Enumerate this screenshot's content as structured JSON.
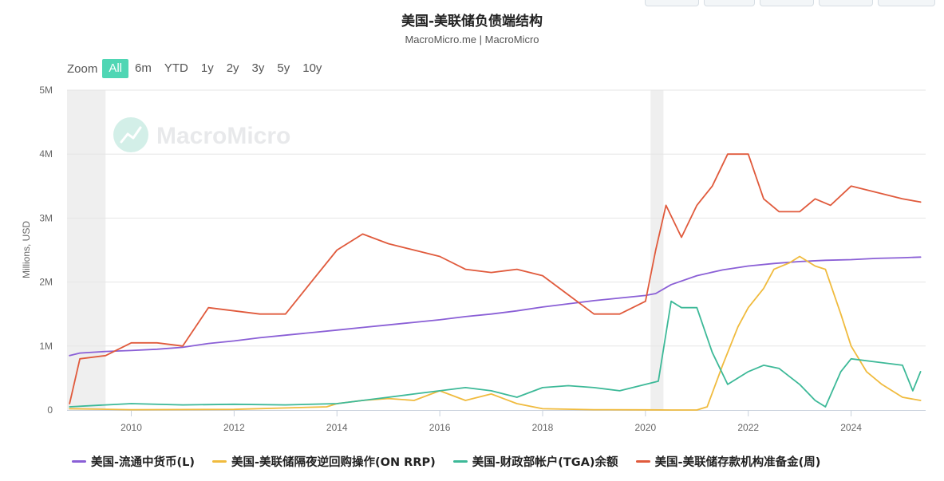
{
  "title": "美国-美联储负债端结构",
  "subtitle": "MacroMicro.me | MacroMicro",
  "watermark": "MacroMicro",
  "zoom": {
    "label": "Zoom",
    "buttons": [
      "All",
      "6m",
      "YTD",
      "1y",
      "2y",
      "3y",
      "5y",
      "10y"
    ],
    "active": "All"
  },
  "chart_data": {
    "type": "line",
    "ylabel": "Millions, USD",
    "xlabel": "",
    "xlim": [
      2008.75,
      2025.45
    ],
    "ylim": [
      0,
      5000000
    ],
    "x_ticks": [
      {
        "value": 2010,
        "label": "2010"
      },
      {
        "value": 2012,
        "label": "2012"
      },
      {
        "value": 2014,
        "label": "2014"
      },
      {
        "value": 2016,
        "label": "2016"
      },
      {
        "value": 2018,
        "label": "2018"
      },
      {
        "value": 2020,
        "label": "2020"
      },
      {
        "value": 2022,
        "label": "2022"
      },
      {
        "value": 2024,
        "label": "2024"
      }
    ],
    "y_ticks": [
      {
        "value": 0,
        "label": "0"
      },
      {
        "value": 1000000,
        "label": "1M"
      },
      {
        "value": 2000000,
        "label": "2M"
      },
      {
        "value": 3000000,
        "label": "3M"
      },
      {
        "value": 4000000,
        "label": "4M"
      },
      {
        "value": 5000000,
        "label": "5M"
      }
    ],
    "grid": true,
    "legend_position": "bottom",
    "shaded_periods": [
      [
        2008.75,
        2009.5
      ],
      [
        2020.1,
        2020.35
      ]
    ],
    "series": [
      {
        "name": "美国-流通中货币(L)",
        "color": "#8a5fd6",
        "points": [
          [
            2008.8,
            850000
          ],
          [
            2009,
            890000
          ],
          [
            2009.5,
            915000
          ],
          [
            2010,
            930000
          ],
          [
            2010.5,
            950000
          ],
          [
            2011,
            980000
          ],
          [
            2011.5,
            1040000
          ],
          [
            2012,
            1080000
          ],
          [
            2012.5,
            1130000
          ],
          [
            2013,
            1170000
          ],
          [
            2013.5,
            1210000
          ],
          [
            2014,
            1250000
          ],
          [
            2014.5,
            1290000
          ],
          [
            2015,
            1330000
          ],
          [
            2015.5,
            1370000
          ],
          [
            2016,
            1410000
          ],
          [
            2016.5,
            1460000
          ],
          [
            2017,
            1500000
          ],
          [
            2017.5,
            1550000
          ],
          [
            2018,
            1610000
          ],
          [
            2018.5,
            1660000
          ],
          [
            2019,
            1710000
          ],
          [
            2019.5,
            1750000
          ],
          [
            2020,
            1790000
          ],
          [
            2020.2,
            1820000
          ],
          [
            2020.5,
            1960000
          ],
          [
            2021,
            2100000
          ],
          [
            2021.5,
            2190000
          ],
          [
            2022,
            2250000
          ],
          [
            2022.5,
            2290000
          ],
          [
            2023,
            2320000
          ],
          [
            2023.5,
            2340000
          ],
          [
            2024,
            2350000
          ],
          [
            2024.5,
            2370000
          ],
          [
            2025,
            2380000
          ],
          [
            2025.35,
            2390000
          ]
        ]
      },
      {
        "name": "美国-美联储隔夜逆回购操作(ON RRP)",
        "color": "#f0bb3e",
        "points": [
          [
            2008.8,
            20000
          ],
          [
            2010,
            5000
          ],
          [
            2012,
            10000
          ],
          [
            2013.8,
            50000
          ],
          [
            2014,
            100000
          ],
          [
            2014.5,
            150000
          ],
          [
            2015,
            180000
          ],
          [
            2015.5,
            150000
          ],
          [
            2016,
            300000
          ],
          [
            2016.5,
            150000
          ],
          [
            2017,
            250000
          ],
          [
            2017.5,
            100000
          ],
          [
            2018,
            20000
          ],
          [
            2019,
            5000
          ],
          [
            2020,
            2000
          ],
          [
            2020.5,
            0
          ],
          [
            2021,
            0
          ],
          [
            2021.2,
            50000
          ],
          [
            2021.5,
            700000
          ],
          [
            2021.8,
            1300000
          ],
          [
            2022,
            1600000
          ],
          [
            2022.3,
            1900000
          ],
          [
            2022.5,
            2200000
          ],
          [
            2022.8,
            2300000
          ],
          [
            2023,
            2400000
          ],
          [
            2023.3,
            2250000
          ],
          [
            2023.5,
            2200000
          ],
          [
            2023.8,
            1500000
          ],
          [
            2024,
            1000000
          ],
          [
            2024.3,
            600000
          ],
          [
            2024.6,
            400000
          ],
          [
            2025,
            200000
          ],
          [
            2025.35,
            150000
          ]
        ]
      },
      {
        "name": "美国-财政部帐户(TGA)余额",
        "color": "#3db998",
        "points": [
          [
            2008.8,
            50000
          ],
          [
            2009.5,
            80000
          ],
          [
            2010,
            100000
          ],
          [
            2011,
            80000
          ],
          [
            2012,
            90000
          ],
          [
            2013,
            80000
          ],
          [
            2014,
            100000
          ],
          [
            2015,
            200000
          ],
          [
            2015.5,
            250000
          ],
          [
            2016,
            300000
          ],
          [
            2016.5,
            350000
          ],
          [
            2017,
            300000
          ],
          [
            2017.5,
            200000
          ],
          [
            2018,
            350000
          ],
          [
            2018.5,
            380000
          ],
          [
            2019,
            350000
          ],
          [
            2019.5,
            300000
          ],
          [
            2020,
            400000
          ],
          [
            2020.25,
            450000
          ],
          [
            2020.5,
            1700000
          ],
          [
            2020.7,
            1600000
          ],
          [
            2021,
            1600000
          ],
          [
            2021.3,
            900000
          ],
          [
            2021.6,
            400000
          ],
          [
            2022,
            600000
          ],
          [
            2022.3,
            700000
          ],
          [
            2022.6,
            650000
          ],
          [
            2023,
            400000
          ],
          [
            2023.3,
            150000
          ],
          [
            2023.5,
            50000
          ],
          [
            2023.8,
            600000
          ],
          [
            2024,
            800000
          ],
          [
            2024.5,
            750000
          ],
          [
            2025,
            700000
          ],
          [
            2025.2,
            300000
          ],
          [
            2025.35,
            600000
          ]
        ]
      },
      {
        "name": "美国-美联储存款机构准备金(周)",
        "color": "#e05a3c",
        "points": [
          [
            2008.8,
            100000
          ],
          [
            2009,
            800000
          ],
          [
            2009.5,
            850000
          ],
          [
            2010,
            1050000
          ],
          [
            2010.5,
            1050000
          ],
          [
            2011,
            1000000
          ],
          [
            2011.5,
            1600000
          ],
          [
            2012,
            1550000
          ],
          [
            2012.5,
            1500000
          ],
          [
            2013,
            1500000
          ],
          [
            2013.5,
            2000000
          ],
          [
            2014,
            2500000
          ],
          [
            2014.5,
            2750000
          ],
          [
            2015,
            2600000
          ],
          [
            2015.5,
            2500000
          ],
          [
            2016,
            2400000
          ],
          [
            2016.5,
            2200000
          ],
          [
            2017,
            2150000
          ],
          [
            2017.5,
            2200000
          ],
          [
            2018,
            2100000
          ],
          [
            2018.5,
            1800000
          ],
          [
            2019,
            1500000
          ],
          [
            2019.5,
            1500000
          ],
          [
            2020,
            1700000
          ],
          [
            2020.2,
            2500000
          ],
          [
            2020.4,
            3200000
          ],
          [
            2020.7,
            2700000
          ],
          [
            2021,
            3200000
          ],
          [
            2021.3,
            3500000
          ],
          [
            2021.6,
            4000000
          ],
          [
            2022,
            4000000
          ],
          [
            2022.3,
            3300000
          ],
          [
            2022.6,
            3100000
          ],
          [
            2023,
            3100000
          ],
          [
            2023.3,
            3300000
          ],
          [
            2023.6,
            3200000
          ],
          [
            2024,
            3500000
          ],
          [
            2024.5,
            3400000
          ],
          [
            2025,
            3300000
          ],
          [
            2025.35,
            3250000
          ]
        ]
      }
    ]
  }
}
